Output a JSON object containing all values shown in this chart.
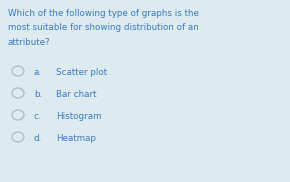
{
  "background_color": "#ddeaf0",
  "question_lines": [
    "Which of the following type of graphs is the",
    "most suitable for showing distribution of an",
    "attribute?"
  ],
  "options": [
    {
      "label": "a.",
      "text": "Scatter plot"
    },
    {
      "label": "b.",
      "text": "Bar chart"
    },
    {
      "label": "c.",
      "text": "Histogram"
    },
    {
      "label": "d.",
      "text": "Heatmap"
    }
  ],
  "question_color": "#3a7abf",
  "option_label_color": "#3a7abf",
  "option_text_color": "#3a7abf",
  "circle_edge_color": "#b0b8c0",
  "question_fontsize": 6.3,
  "option_fontsize": 6.3,
  "font_family": "DejaVu Sans"
}
